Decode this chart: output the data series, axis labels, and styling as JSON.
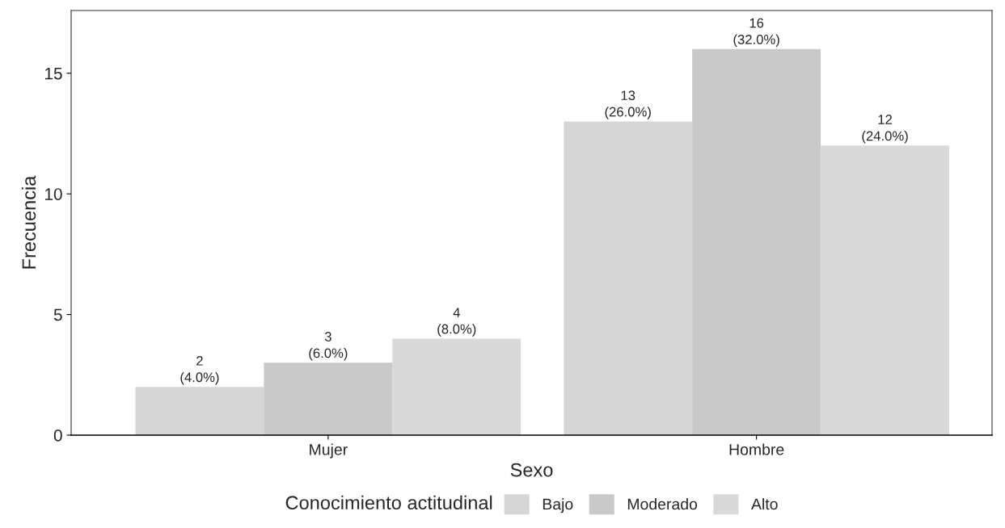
{
  "chart_data": {
    "type": "bar",
    "xlabel": "Sexo",
    "ylabel": "Frecuencia",
    "legend_title": "Conocimiento actitudinal",
    "categories": [
      "Mujer",
      "Hombre"
    ],
    "series": [
      {
        "name": "Bajo",
        "color": "#d6d6d6",
        "values": [
          2,
          13
        ],
        "value_labels": [
          "2\n(4.0%)",
          "13\n(26.0%)"
        ]
      },
      {
        "name": "Moderado",
        "color": "#c9c9c9",
        "values": [
          3,
          16
        ],
        "value_labels": [
          "3\n(6.0%)",
          "16\n(32.0%)"
        ]
      },
      {
        "name": "Alto",
        "color": "#d9d9d9",
        "values": [
          4,
          12
        ],
        "value_labels": [
          "4\n(8.0%)",
          "12\n(24.0%)"
        ]
      }
    ],
    "ylim": [
      0,
      17.6
    ],
    "yticks": [
      0,
      5,
      10,
      15
    ],
    "grid": false,
    "legend": "bottom"
  }
}
